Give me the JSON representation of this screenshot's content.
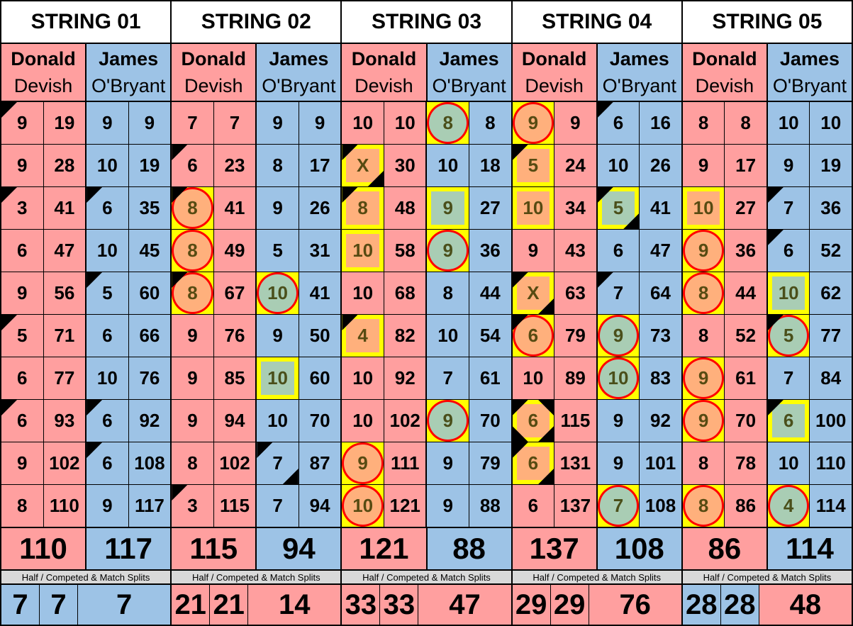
{
  "colors": {
    "donald": "#FF9F9F",
    "james": "#9DC3E6",
    "donald_highlight": "#FFB07C",
    "james_highlight": "#A9CDB4",
    "highlight_border": "#FFFF00",
    "circle": "#FF0000"
  },
  "players": {
    "donald": {
      "first": "Donald",
      "last": "Devish"
    },
    "james": {
      "first": "James",
      "last": "O'Bryant"
    }
  },
  "split_label": "Half / Competed & Match Splits",
  "strings": [
    {
      "title": "STRING 01",
      "totals": [
        "110",
        "117"
      ],
      "splits": [
        {
          "v": "7",
          "c": "james"
        },
        {
          "v": "7",
          "c": "james"
        },
        {
          "v": "7",
          "c": "james"
        }
      ],
      "rows": [
        [
          {
            "v": "9",
            "m": [
              "tl"
            ]
          },
          "19",
          {
            "v": "9"
          },
          "9"
        ],
        [
          {
            "v": "9"
          },
          "28",
          {
            "v": "10"
          },
          "19"
        ],
        [
          {
            "v": "3",
            "m": [
              "tl"
            ]
          },
          "41",
          {
            "v": "6",
            "m": [
              "tl"
            ]
          },
          "35"
        ],
        [
          {
            "v": "6"
          },
          "47",
          {
            "v": "10"
          },
          "45"
        ],
        [
          {
            "v": "9"
          },
          "56",
          {
            "v": "5",
            "m": [
              "tl"
            ]
          },
          "60"
        ],
        [
          {
            "v": "5",
            "m": [
              "tl"
            ]
          },
          "71",
          {
            "v": "6"
          },
          "66"
        ],
        [
          {
            "v": "6"
          },
          "77",
          {
            "v": "10"
          },
          "76"
        ],
        [
          {
            "v": "6",
            "m": [
              "tl"
            ]
          },
          "93",
          {
            "v": "6",
            "m": [
              "tl"
            ]
          },
          "92"
        ],
        [
          {
            "v": "9"
          },
          "102",
          {
            "v": "6",
            "m": [
              "tl"
            ]
          },
          "108"
        ],
        [
          {
            "v": "8"
          },
          "110",
          {
            "v": "9"
          },
          "117"
        ]
      ]
    },
    {
      "title": "STRING 02",
      "totals": [
        "115",
        "94"
      ],
      "splits": [
        {
          "v": "21",
          "c": "donald"
        },
        {
          "v": "21",
          "c": "donald"
        },
        {
          "v": "14",
          "c": "donald"
        }
      ],
      "rows": [
        [
          {
            "v": "7"
          },
          "7",
          {
            "v": "9"
          },
          "9"
        ],
        [
          {
            "v": "6",
            "m": [
              "tl"
            ]
          },
          "23",
          {
            "v": "8"
          },
          "17"
        ],
        [
          {
            "v": "8",
            "hl": "circle",
            "m": [
              "tl"
            ]
          },
          "41",
          {
            "v": "9"
          },
          "26"
        ],
        [
          {
            "v": "8",
            "hl": "circle"
          },
          "49",
          {
            "v": "5"
          },
          "31"
        ],
        [
          {
            "v": "8",
            "hl": "circle",
            "m": [
              "tl"
            ]
          },
          "67",
          {
            "v": "10",
            "hl": "circle"
          },
          "41"
        ],
        [
          {
            "v": "9"
          },
          "76",
          {
            "v": "9"
          },
          "50"
        ],
        [
          {
            "v": "9"
          },
          "85",
          {
            "v": "10",
            "hl": "box"
          },
          "60"
        ],
        [
          {
            "v": "9"
          },
          "94",
          {
            "v": "10"
          },
          "70"
        ],
        [
          {
            "v": "8"
          },
          "102",
          {
            "v": "7",
            "m": [
              "tl",
              "br"
            ]
          },
          "87"
        ],
        [
          {
            "v": "3",
            "m": [
              "tl"
            ]
          },
          "115",
          {
            "v": "7"
          },
          "94"
        ]
      ]
    },
    {
      "title": "STRING 03",
      "totals": [
        "121",
        "88"
      ],
      "splits": [
        {
          "v": "33",
          "c": "donald"
        },
        {
          "v": "33",
          "c": "donald"
        },
        {
          "v": "47",
          "c": "donald"
        }
      ],
      "rows": [
        [
          {
            "v": "10"
          },
          "10",
          {
            "v": "8",
            "hl": "circle"
          },
          "8"
        ],
        [
          {
            "v": "X",
            "hl": "box",
            "m": [
              "tl",
              "br"
            ]
          },
          "30",
          {
            "v": "10"
          },
          "18"
        ],
        [
          {
            "v": "8",
            "hl": "box",
            "m": [
              "tl"
            ]
          },
          "48",
          {
            "v": "9",
            "hl": "box"
          },
          "27"
        ],
        [
          {
            "v": "10",
            "hl": "box"
          },
          "58",
          {
            "v": "9",
            "hl": "circle"
          },
          "36"
        ],
        [
          {
            "v": "10"
          },
          "68",
          {
            "v": "8"
          },
          "44"
        ],
        [
          {
            "v": "4",
            "hl": "box",
            "m": [
              "tl"
            ]
          },
          "82",
          {
            "v": "10"
          },
          "54"
        ],
        [
          {
            "v": "10"
          },
          "92",
          {
            "v": "7"
          },
          "61"
        ],
        [
          {
            "v": "10"
          },
          "102",
          {
            "v": "9",
            "hl": "circle"
          },
          "70"
        ],
        [
          {
            "v": "9",
            "hl": "circle"
          },
          "111",
          {
            "v": "9"
          },
          "79"
        ],
        [
          {
            "v": "10",
            "hl": "circle"
          },
          "121",
          {
            "v": "9"
          },
          "88"
        ]
      ]
    },
    {
      "title": "STRING 04",
      "totals": [
        "137",
        "108"
      ],
      "splits": [
        {
          "v": "29",
          "c": "donald"
        },
        {
          "v": "29",
          "c": "donald"
        },
        {
          "v": "76",
          "c": "donald"
        }
      ],
      "rows": [
        [
          {
            "v": "9",
            "hl": "circle"
          },
          "9",
          {
            "v": "6",
            "m": [
              "tl"
            ]
          },
          "16"
        ],
        [
          {
            "v": "5",
            "hl": "box",
            "m": [
              "tl"
            ]
          },
          "24",
          {
            "v": "10"
          },
          "26"
        ],
        [
          {
            "v": "10",
            "hl": "box"
          },
          "34",
          {
            "v": "5",
            "hl": "box",
            "m": [
              "tl",
              "br"
            ]
          },
          "41"
        ],
        [
          {
            "v": "9"
          },
          "43",
          {
            "v": "6"
          },
          "47"
        ],
        [
          {
            "v": "X",
            "hl": "box",
            "m": [
              "tl",
              "br"
            ]
          },
          "63",
          {
            "v": "7",
            "m": [
              "tl"
            ]
          },
          "64"
        ],
        [
          {
            "v": "6",
            "hl": "circle",
            "m": [
              "tl"
            ]
          },
          "79",
          {
            "v": "9",
            "hl": "circle"
          },
          "73"
        ],
        [
          {
            "v": "10"
          },
          "89",
          {
            "v": "10",
            "hl": "circle"
          },
          "83"
        ],
        [
          {
            "v": "6",
            "hl": "box",
            "m": [
              "tl",
              "tr",
              "bl",
              "br"
            ]
          },
          "115",
          {
            "v": "9"
          },
          "92"
        ],
        [
          {
            "v": "6",
            "hl": "box",
            "m": [
              "tl",
              "br"
            ]
          },
          "131",
          {
            "v": "9"
          },
          "101"
        ],
        [
          {
            "v": "6"
          },
          "137",
          {
            "v": "7",
            "hl": "circle"
          },
          "108"
        ]
      ]
    },
    {
      "title": "STRING 05",
      "totals": [
        "86",
        "114"
      ],
      "splits": [
        {
          "v": "28",
          "c": "james"
        },
        {
          "v": "28",
          "c": "james"
        },
        {
          "v": "48",
          "c": "donald"
        }
      ],
      "rows": [
        [
          {
            "v": "8"
          },
          "8",
          {
            "v": "10"
          },
          "10"
        ],
        [
          {
            "v": "9"
          },
          "17",
          {
            "v": "9"
          },
          "19"
        ],
        [
          {
            "v": "10",
            "hl": "box"
          },
          "27",
          {
            "v": "7",
            "m": [
              "tl"
            ]
          },
          "36"
        ],
        [
          {
            "v": "9",
            "hl": "circle"
          },
          "36",
          {
            "v": "6",
            "m": [
              "tl"
            ]
          },
          "52"
        ],
        [
          {
            "v": "8",
            "hl": "circle"
          },
          "44",
          {
            "v": "10",
            "hl": "box"
          },
          "62"
        ],
        [
          {
            "v": "8"
          },
          "52",
          {
            "v": "5",
            "hl": "circle",
            "m": [
              "tl"
            ]
          },
          "77"
        ],
        [
          {
            "v": "9",
            "hl": "circle"
          },
          "61",
          {
            "v": "7"
          },
          "84"
        ],
        [
          {
            "v": "9",
            "hl": "circle"
          },
          "70",
          {
            "v": "6",
            "hl": "box",
            "m": [
              "tl"
            ]
          },
          "100"
        ],
        [
          {
            "v": "8"
          },
          "78",
          {
            "v": "10"
          },
          "110"
        ],
        [
          {
            "v": "8",
            "hl": "circle"
          },
          "86",
          {
            "v": "4",
            "hl": "circle"
          },
          "114"
        ]
      ]
    }
  ]
}
